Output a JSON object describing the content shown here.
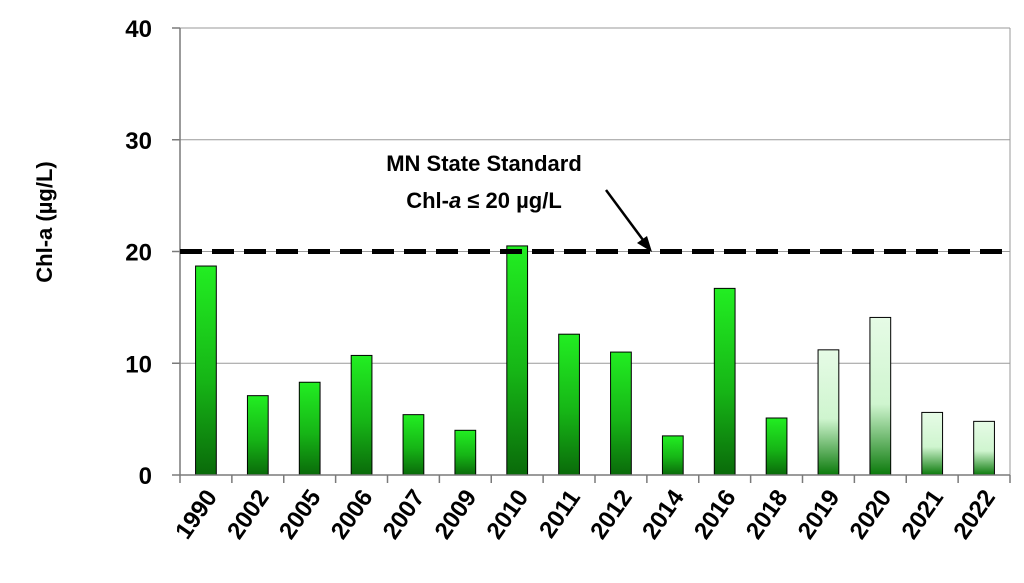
{
  "chart_data": {
    "type": "bar",
    "ylabel": "Chl-a (µg/L)",
    "ylim": [
      0,
      40
    ],
    "yticks": [
      0,
      10,
      20,
      30,
      40
    ],
    "grid": "horizontal",
    "categories": [
      "1990",
      "2002",
      "2005",
      "2006",
      "2007",
      "2009",
      "2010",
      "2011",
      "2012",
      "2014",
      "2016",
      "2018",
      "2019",
      "2020",
      "2021",
      "2022"
    ],
    "values": [
      18.7,
      7.1,
      8.3,
      10.7,
      5.4,
      4.0,
      20.5,
      12.6,
      11.0,
      3.5,
      16.7,
      5.1,
      11.2,
      14.1,
      5.6,
      4.8
    ],
    "bar_shading": [
      "dark",
      "dark",
      "dark",
      "dark",
      "dark",
      "dark",
      "dark",
      "dark",
      "dark",
      "dark",
      "dark",
      "dark",
      "light",
      "light",
      "light",
      "light"
    ],
    "reference_line": {
      "value": 20,
      "style": "dashed",
      "label_line1": "MN State Standard",
      "label_line2_prefix": "Chl-",
      "label_line2_italic": "a",
      "label_line2_suffix": " ≤ 20 µg/L"
    },
    "colors": {
      "bar_bright": "#22ee22",
      "bar_dark": "#0a6a0a",
      "bar_light_top": "#e6fbe6",
      "bar_light_mid": "#cff5cf",
      "bar_light_bottom": "#0b7a0b",
      "reference_line": "#000000",
      "grid": "#9a9a9a"
    }
  }
}
